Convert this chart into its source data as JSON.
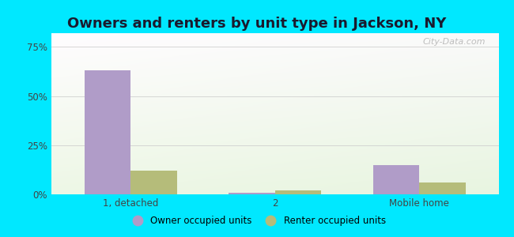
{
  "title": "Owners and renters by unit type in Jackson, NY",
  "categories": [
    "1, detached",
    "2",
    "Mobile home"
  ],
  "owner_values": [
    63,
    1,
    15
  ],
  "renter_values": [
    12,
    2,
    6
  ],
  "owner_color": "#b09cc8",
  "renter_color": "#b5bc7a",
  "owner_label": "Owner occupied units",
  "renter_label": "Renter occupied units",
  "yticks": [
    0,
    25,
    50,
    75
  ],
  "ytick_labels": [
    "0%",
    "25%",
    "50%",
    "75%"
  ],
  "ylim": [
    0,
    82
  ],
  "background_outer": "#00e8ff",
  "watermark": "City-Data.com",
  "title_fontsize": 13,
  "bar_width": 0.32
}
